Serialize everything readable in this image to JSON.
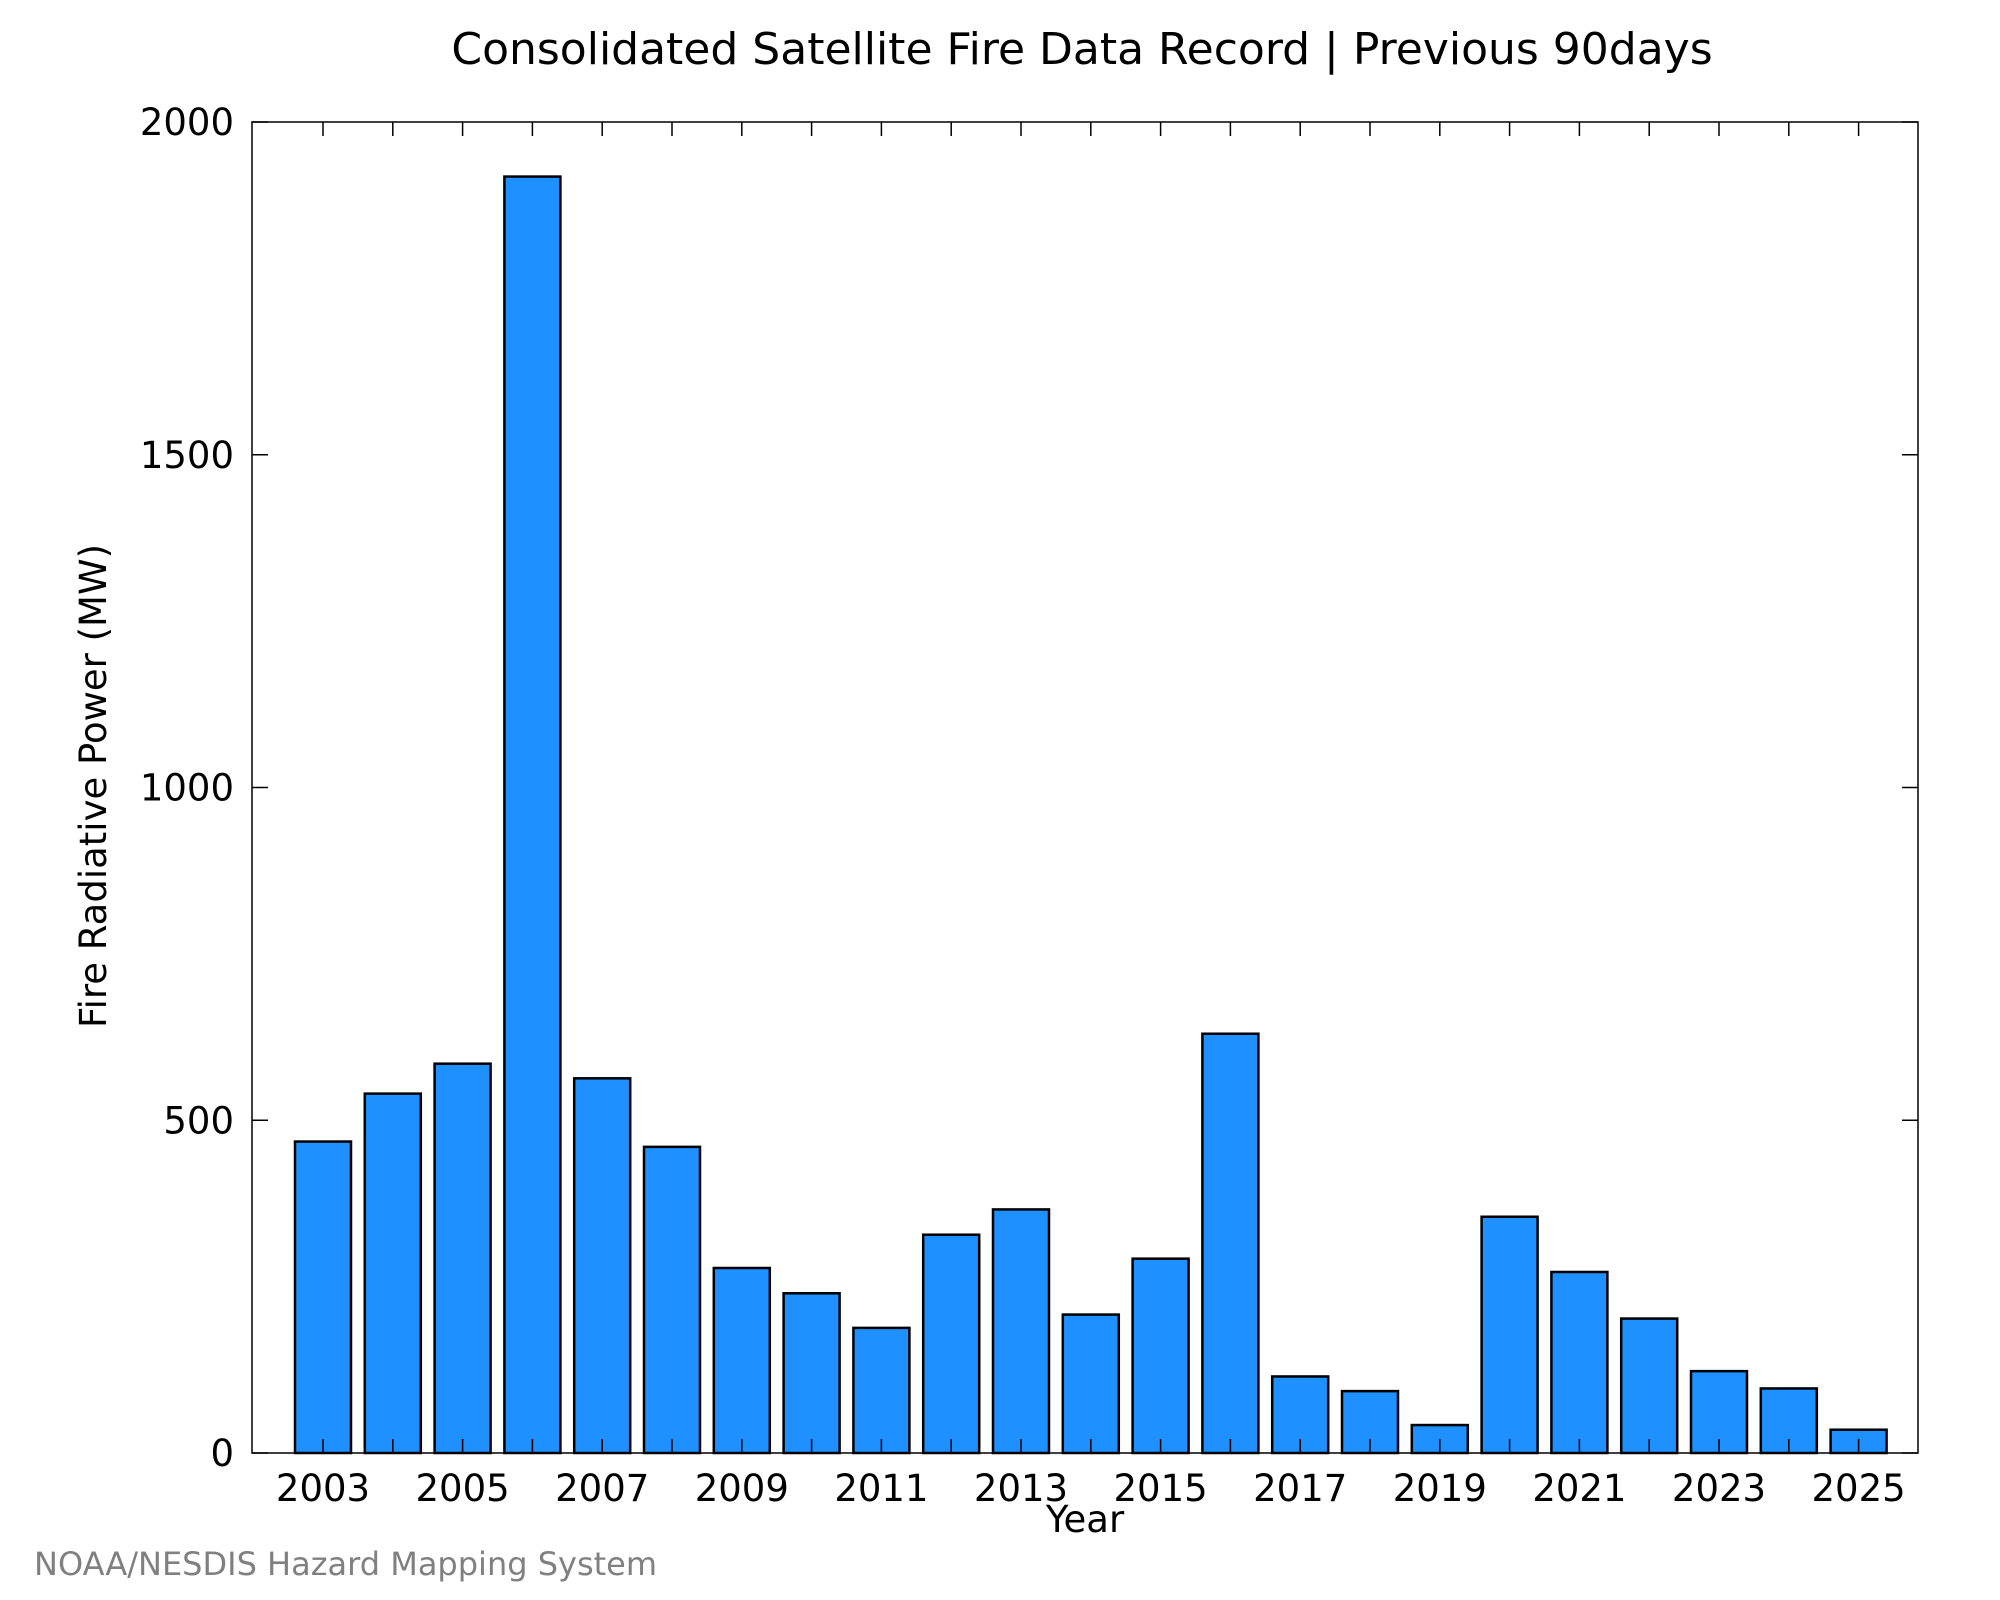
{
  "chart_data": {
    "type": "bar",
    "title": "Consolidated Satellite Fire Data Record | Previous 90days",
    "xlabel": "Year",
    "ylabel": "Fire Radiative Power (MW)",
    "ylim": [
      0,
      2000
    ],
    "yticks": [
      0,
      500,
      1000,
      1500,
      2000
    ],
    "x_tick_labels": [
      "2003",
      "2005",
      "2007",
      "2009",
      "2011",
      "2013",
      "2015",
      "2017",
      "2019",
      "2021",
      "2023",
      "2025"
    ],
    "categories": [
      2003,
      2004,
      2005,
      2006,
      2007,
      2008,
      2009,
      2010,
      2011,
      2012,
      2013,
      2014,
      2015,
      2016,
      2017,
      2018,
      2019,
      2020,
      2021,
      2022,
      2023,
      2024,
      2025
    ],
    "values": [
      468,
      540,
      585,
      1918,
      563,
      460,
      278,
      240,
      188,
      328,
      366,
      208,
      292,
      630,
      115,
      93,
      42,
      355,
      272,
      202,
      123,
      97,
      35
    ],
    "grid": false,
    "colors": {
      "bar_fill": "#1e90ff",
      "bar_stroke": "#000000"
    }
  },
  "credit": "NOAA/NESDIS Hazard Mapping System"
}
